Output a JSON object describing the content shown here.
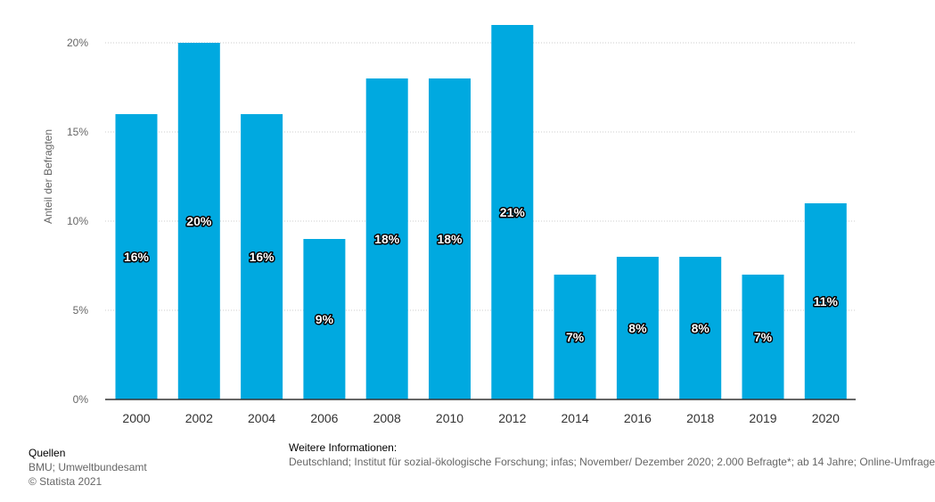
{
  "chart_data": {
    "type": "bar",
    "categories": [
      "2000",
      "2002",
      "2004",
      "2006",
      "2008",
      "2010",
      "2012",
      "2014",
      "2016",
      "2018",
      "2019",
      "2020"
    ],
    "values": [
      16,
      20,
      16,
      9,
      18,
      18,
      21,
      7,
      8,
      8,
      7,
      11
    ],
    "value_labels": [
      "16%",
      "20%",
      "16%",
      "9%",
      "18%",
      "18%",
      "21%",
      "7%",
      "8%",
      "8%",
      "7%",
      "11%"
    ],
    "ylabel": "Anteil der Befragten",
    "xlabel": "",
    "ylim": [
      0,
      20
    ],
    "yticks": [
      0,
      5,
      10,
      15,
      20
    ],
    "ytick_labels": [
      "0%",
      "5%",
      "10%",
      "15%",
      "20%"
    ],
    "grid": true,
    "bar_color": "#00a9e0"
  },
  "footer": {
    "sources_heading": "Quellen",
    "sources_text": "BMU; Umweltbundesamt",
    "copyright": "© Statista 2021",
    "info_heading": "Weitere Informationen:",
    "info_text": "Deutschland; Institut für sozial-ökologische Forschung; infas; November/ Dezember 2020; 2.000 Befragte*; ab 14 Jahre; Online-Umfrage"
  }
}
